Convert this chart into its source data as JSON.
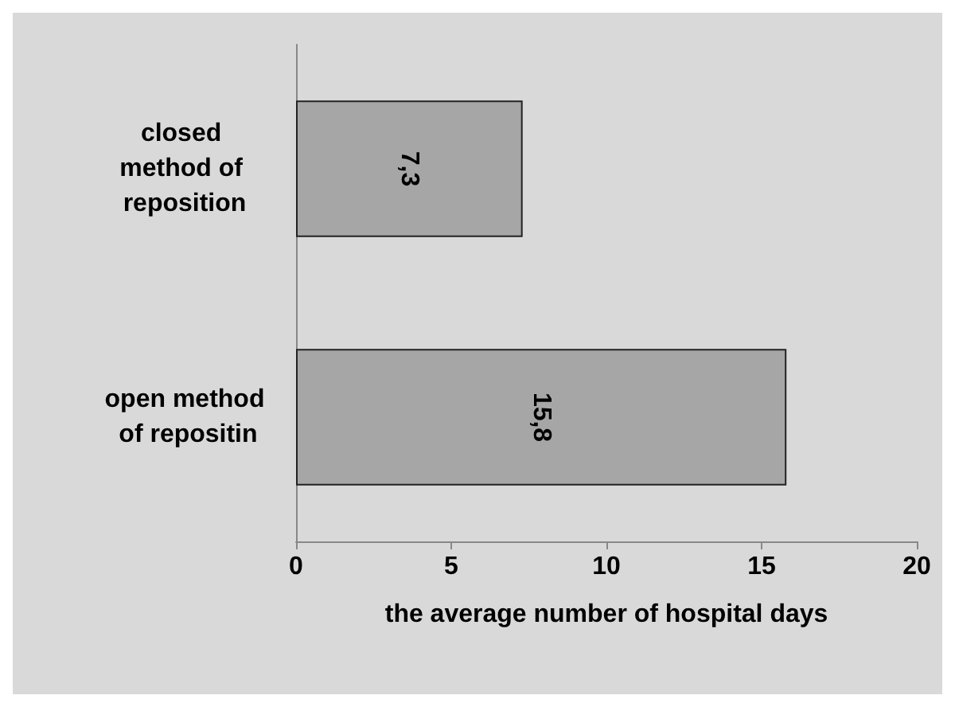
{
  "chart_data": {
    "type": "bar",
    "orientation": "horizontal",
    "xlabel": "the average number of hospital days",
    "categories": [
      "closed method of reposition",
      "open method of repositin"
    ],
    "values": [
      7.3,
      15.8
    ],
    "value_labels": [
      "7,3",
      "15,8"
    ],
    "color": "#a6a6a6",
    "xlim": [
      0,
      20
    ],
    "xticks": [
      0,
      5,
      10,
      15,
      20
    ],
    "grid": false
  }
}
